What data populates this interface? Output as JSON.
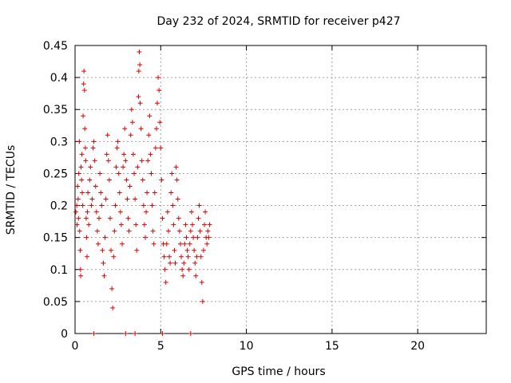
{
  "chart_data": {
    "type": "scatter",
    "title": "Day 232 of 2024, SRMTID for receiver p427",
    "xlabel": "GPS time / hours",
    "ylabel": "SRMTID / TECUs",
    "xlim": [
      0,
      24
    ],
    "ylim": [
      0,
      0.45
    ],
    "x_ticks": [
      0,
      5,
      10,
      15,
      20
    ],
    "x_tick_labels": [
      "0",
      "5",
      "10",
      "15",
      "20"
    ],
    "y_ticks": [
      0,
      0.05,
      0.1,
      0.15,
      0.2,
      0.25,
      0.3,
      0.35,
      0.4,
      0.45
    ],
    "y_tick_labels": [
      "0",
      "0.05",
      "0.1",
      "0.15",
      "0.2",
      "0.25",
      "0.3",
      "0.35",
      "0.4",
      "0.45"
    ],
    "grid": true,
    "marker": "+",
    "color": "#e00000",
    "series": [
      {
        "name": "SRMTID",
        "points": [
          [
            0.05,
            0.19
          ],
          [
            0.1,
            0.2
          ],
          [
            0.12,
            0.17
          ],
          [
            0.15,
            0.23
          ],
          [
            0.18,
            0.21
          ],
          [
            0.2,
            0.18
          ],
          [
            0.22,
            0.25
          ],
          [
            0.25,
            0.3
          ],
          [
            0.27,
            0.16
          ],
          [
            0.3,
            0.13
          ],
          [
            0.32,
            0.1
          ],
          [
            0.33,
            0.09
          ],
          [
            0.35,
            0.26
          ],
          [
            0.38,
            0.24
          ],
          [
            0.4,
            0.28
          ],
          [
            0.42,
            0.22
          ],
          [
            0.45,
            0.2
          ],
          [
            0.47,
            0.34
          ],
          [
            0.5,
            0.39
          ],
          [
            0.52,
            0.41
          ],
          [
            0.55,
            0.38
          ],
          [
            0.57,
            0.32
          ],
          [
            0.6,
            0.29
          ],
          [
            0.62,
            0.27
          ],
          [
            0.65,
            0.18
          ],
          [
            0.67,
            0.15
          ],
          [
            0.7,
            0.12
          ],
          [
            0.72,
            0.19
          ],
          [
            0.75,
            0.22
          ],
          [
            0.8,
            0.17
          ],
          [
            0.85,
            0.24
          ],
          [
            0.9,
            0.26
          ],
          [
            0.95,
            0.2
          ],
          [
            1.0,
            0.21
          ],
          [
            1.05,
            0.29
          ],
          [
            1.1,
            0.3
          ],
          [
            1.15,
            0.27
          ],
          [
            1.2,
            0.23
          ],
          [
            1.25,
            0.19
          ],
          [
            1.3,
            0.16
          ],
          [
            1.35,
            0.14
          ],
          [
            1.4,
            0.18
          ],
          [
            1.45,
            0.25
          ],
          [
            1.5,
            0.22
          ],
          [
            1.55,
            0.2
          ],
          [
            1.6,
            0.13
          ],
          [
            1.65,
            0.11
          ],
          [
            1.7,
            0.09
          ],
          [
            1.75,
            0.15
          ],
          [
            1.8,
            0.21
          ],
          [
            1.85,
            0.28
          ],
          [
            1.9,
            0.31
          ],
          [
            1.95,
            0.27
          ],
          [
            2.0,
            0.24
          ],
          [
            2.05,
            0.18
          ],
          [
            2.1,
            0.13
          ],
          [
            2.15,
            0.07
          ],
          [
            2.2,
            0.04
          ],
          [
            2.25,
            0.12
          ],
          [
            2.3,
            0.16
          ],
          [
            2.35,
            0.2
          ],
          [
            2.4,
            0.26
          ],
          [
            2.45,
            0.29
          ],
          [
            2.5,
            0.3
          ],
          [
            2.55,
            0.25
          ],
          [
            2.6,
            0.22
          ],
          [
            2.65,
            0.19
          ],
          [
            2.7,
            0.17
          ],
          [
            2.75,
            0.14
          ],
          [
            2.8,
            0.26
          ],
          [
            2.85,
            0.28
          ],
          [
            2.9,
            0.32
          ],
          [
            2.95,
            0.27
          ],
          [
            3.0,
            0.24
          ],
          [
            3.05,
            0.21
          ],
          [
            3.1,
            0.18
          ],
          [
            3.15,
            0.16
          ],
          [
            3.2,
            0.23
          ],
          [
            3.25,
            0.31
          ],
          [
            3.3,
            0.35
          ],
          [
            3.35,
            0.33
          ],
          [
            3.4,
            0.28
          ],
          [
            3.45,
            0.25
          ],
          [
            3.5,
            0.21
          ],
          [
            3.55,
            0.17
          ],
          [
            3.6,
            0.13
          ],
          [
            3.65,
            0.26
          ],
          [
            3.7,
            0.37
          ],
          [
            3.72,
            0.41
          ],
          [
            3.75,
            0.44
          ],
          [
            3.78,
            0.42
          ],
          [
            3.8,
            0.36
          ],
          [
            3.85,
            0.32
          ],
          [
            3.9,
            0.27
          ],
          [
            3.95,
            0.24
          ],
          [
            4.0,
            0.2
          ],
          [
            4.05,
            0.17
          ],
          [
            4.1,
            0.15
          ],
          [
            4.15,
            0.19
          ],
          [
            4.2,
            0.22
          ],
          [
            4.25,
            0.27
          ],
          [
            4.3,
            0.31
          ],
          [
            4.35,
            0.34
          ],
          [
            4.4,
            0.28
          ],
          [
            4.45,
            0.25
          ],
          [
            4.5,
            0.2
          ],
          [
            4.55,
            0.16
          ],
          [
            4.6,
            0.14
          ],
          [
            4.65,
            0.22
          ],
          [
            4.7,
            0.29
          ],
          [
            4.75,
            0.32
          ],
          [
            4.8,
            0.36
          ],
          [
            4.85,
            0.4
          ],
          [
            4.9,
            0.38
          ],
          [
            4.95,
            0.33
          ],
          [
            5.0,
            0.29
          ],
          [
            5.05,
            0.24
          ],
          [
            5.1,
            0.18
          ],
          [
            5.15,
            0.14
          ],
          [
            5.2,
            0.12
          ],
          [
            5.25,
            0.1
          ],
          [
            5.3,
            0.08
          ],
          [
            5.35,
            0.14
          ],
          [
            5.4,
            0.19
          ],
          [
            5.45,
            0.16
          ],
          [
            5.5,
            0.12
          ],
          [
            5.55,
            0.11
          ],
          [
            5.6,
            0.22
          ],
          [
            5.65,
            0.25
          ],
          [
            5.7,
            0.2
          ],
          [
            5.75,
            0.17
          ],
          [
            5.8,
            0.13
          ],
          [
            5.85,
            0.11
          ],
          [
            5.9,
            0.26
          ],
          [
            5.95,
            0.24
          ],
          [
            6.0,
            0.21
          ],
          [
            6.05,
            0.18
          ],
          [
            6.1,
            0.16
          ],
          [
            6.15,
            0.14
          ],
          [
            6.2,
            0.12
          ],
          [
            6.25,
            0.1
          ],
          [
            6.3,
            0.09
          ],
          [
            6.35,
            0.11
          ],
          [
            6.4,
            0.14
          ],
          [
            6.45,
            0.17
          ],
          [
            6.5,
            0.15
          ],
          [
            6.55,
            0.13
          ],
          [
            6.6,
            0.12
          ],
          [
            6.65,
            0.1
          ],
          [
            6.7,
            0.14
          ],
          [
            6.75,
            0.16
          ],
          [
            6.8,
            0.19
          ],
          [
            6.85,
            0.17
          ],
          [
            6.9,
            0.15
          ],
          [
            6.95,
            0.13
          ],
          [
            7.0,
            0.11
          ],
          [
            7.05,
            0.09
          ],
          [
            7.1,
            0.12
          ],
          [
            7.15,
            0.15
          ],
          [
            7.2,
            0.18
          ],
          [
            7.25,
            0.2
          ],
          [
            7.3,
            0.16
          ],
          [
            7.35,
            0.12
          ],
          [
            7.4,
            0.08
          ],
          [
            7.45,
            0.05
          ],
          [
            7.5,
            0.13
          ],
          [
            7.55,
            0.17
          ],
          [
            7.6,
            0.19
          ],
          [
            7.65,
            0.15
          ],
          [
            7.7,
            0.14
          ],
          [
            7.75,
            0.16
          ],
          [
            7.8,
            0.15
          ],
          [
            7.85,
            0.17
          ],
          [
            1.1,
            0
          ],
          [
            2.95,
            0
          ],
          [
            3.5,
            0
          ],
          [
            5.1,
            0
          ],
          [
            6.75,
            0
          ]
        ]
      }
    ]
  }
}
